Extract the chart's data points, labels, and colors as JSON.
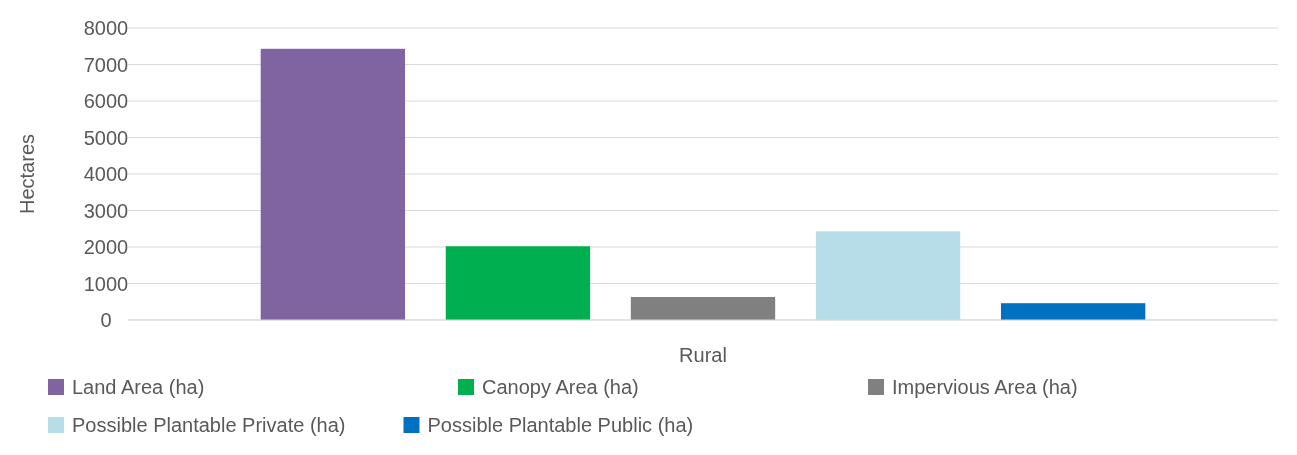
{
  "chart_data": {
    "type": "bar",
    "ylabel": "Hectares",
    "categories": [
      "Rural"
    ],
    "series": [
      {
        "name": "Land Area (ha)",
        "color": "#8064a2",
        "values": [
          7430
        ]
      },
      {
        "name": "Canopy Area (ha)",
        "color": "#00b050",
        "values": [
          2020
        ]
      },
      {
        "name": "Impervious Area (ha)",
        "color": "#808080",
        "values": [
          630
        ]
      },
      {
        "name": "Possible Plantable Private (ha)",
        "color": "#b7dee8",
        "values": [
          2430
        ]
      },
      {
        "name": "Possible Plantable Public (ha)",
        "color": "#0070c0",
        "values": [
          460
        ]
      }
    ],
    "ylim": [
      0,
      8000
    ],
    "yticks": [
      0,
      1000,
      2000,
      3000,
      4000,
      5000,
      6000,
      7000,
      8000
    ],
    "grid": "y",
    "legend": "bottom"
  }
}
